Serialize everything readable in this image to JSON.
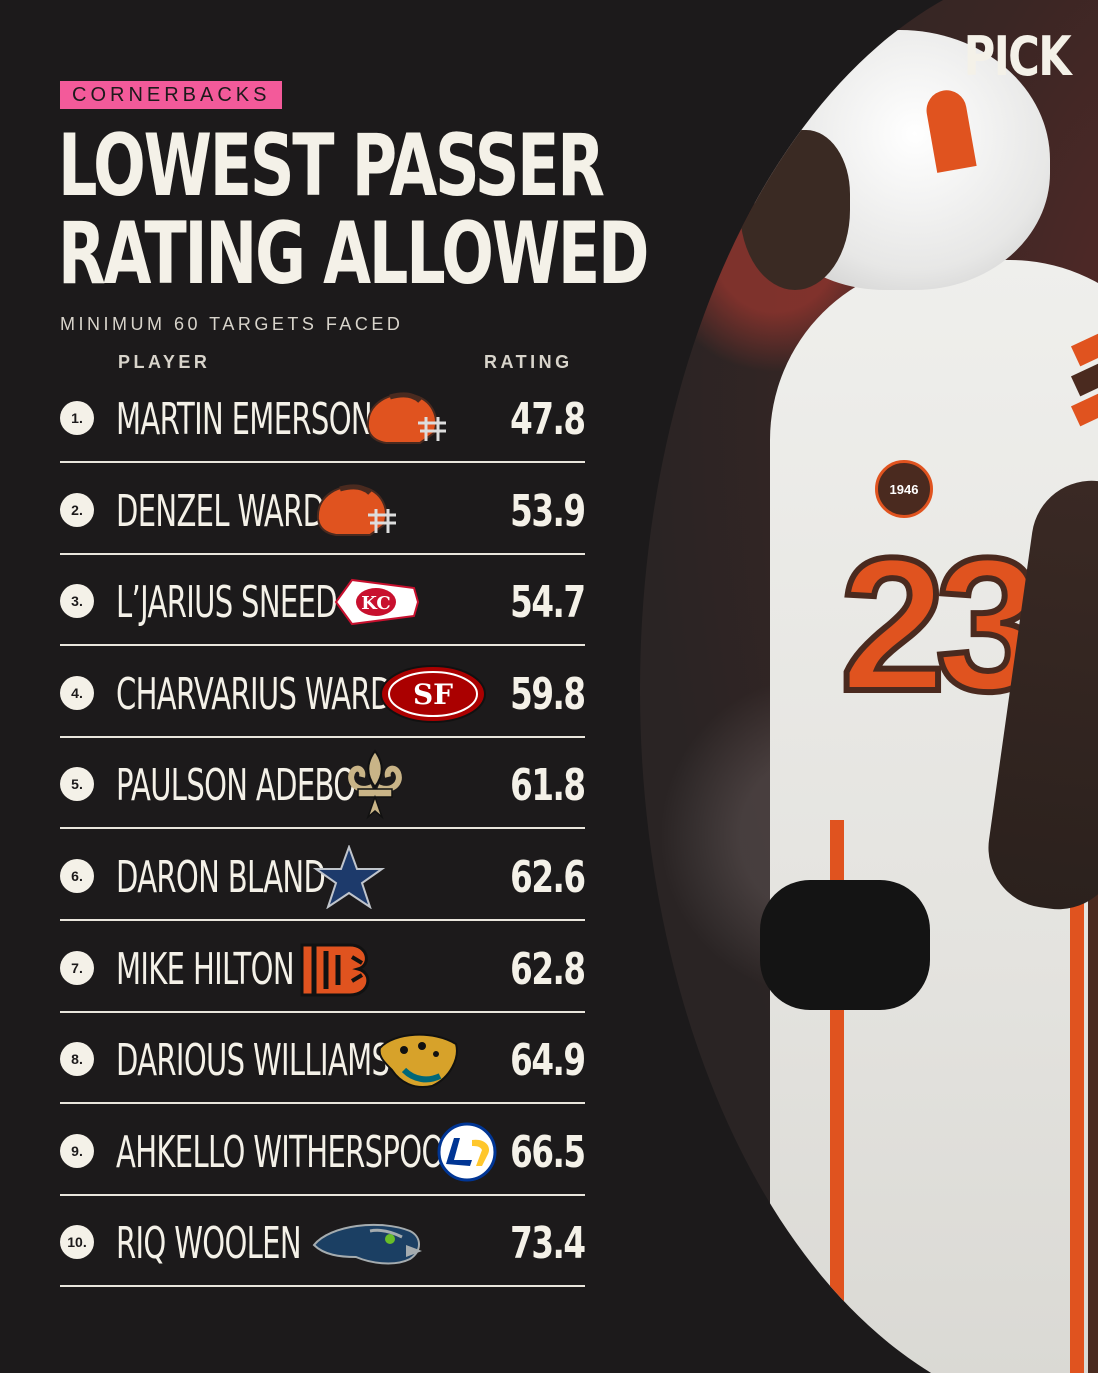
{
  "brand": "PICK",
  "category_tag": "CORNERBACKS",
  "title_line1": "LOWEST PASSER",
  "title_line2": "RATING ALLOWED",
  "subtitle": "MINIMUM 60 TARGETS FACED",
  "columns": {
    "player": "PLAYER",
    "rating": "RATING"
  },
  "photo": {
    "jersey_number": "23",
    "patch": "1946"
  },
  "players": [
    {
      "rank": "1.",
      "name": "MARTIN EMERSON",
      "team_logo": "browns-helmet-icon",
      "rating": "47.8"
    },
    {
      "rank": "2.",
      "name": "DENZEL WARD",
      "team_logo": "browns-helmet-icon",
      "rating": "53.9"
    },
    {
      "rank": "3.",
      "name": "L’JARIUS SNEED",
      "team_logo": "chiefs-arrowhead-icon",
      "rating": "54.7"
    },
    {
      "rank": "4.",
      "name": "CHARVARIUS WARD",
      "team_logo": "49ers-oval-icon",
      "rating": "59.8"
    },
    {
      "rank": "5.",
      "name": "PAULSON ADEBO",
      "team_logo": "saints-fleur-de-lis-icon",
      "rating": "61.8"
    },
    {
      "rank": "6.",
      "name": "DARON BLAND",
      "team_logo": "cowboys-star-icon",
      "rating": "62.6"
    },
    {
      "rank": "7.",
      "name": "MIKE HILTON",
      "team_logo": "bengals-b-icon",
      "rating": "62.8"
    },
    {
      "rank": "8.",
      "name": "DARIOUS WILLIAMS",
      "team_logo": "jaguars-head-icon",
      "rating": "64.9"
    },
    {
      "rank": "9.",
      "name": "AHKELLO WITHERSPOON",
      "team_logo": "rams-la-icon",
      "rating": "66.5"
    },
    {
      "rank": "10.",
      "name": "RIQ WOOLEN",
      "team_logo": "seahawks-head-icon",
      "rating": "73.4"
    }
  ],
  "colors": {
    "background": "#1c1a1b",
    "text": "#f4f1e8",
    "tag": "#f35a9a",
    "browns_orange": "#e0531f",
    "browns_brown": "#4a2a1f"
  }
}
